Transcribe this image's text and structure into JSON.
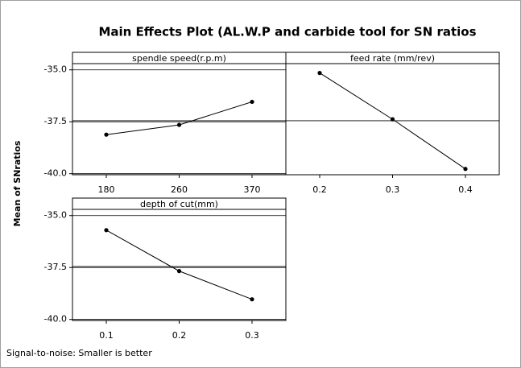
{
  "title": "Main Effects Plot (AL.W.P and carbide tool for SN ratios",
  "y_label": "Mean of SNratios",
  "footnote": "Signal-to-noise: Smaller is better",
  "chart_data": [
    {
      "type": "line",
      "title": "spendle speed(r.p.m)",
      "categories": [
        "180",
        "260",
        "370"
      ],
      "values": [
        -38.12,
        -37.65,
        -36.54
      ],
      "color": "#000000",
      "reference_line": -37.45,
      "ylim": [
        -40.05,
        -34.7
      ],
      "yticks": [
        {
          "value": -35,
          "label": "-35.0"
        },
        -37.5,
        {
          "value": -40,
          "label": "-40.0"
        }
      ]
    },
    {
      "type": "line",
      "title": "feed rate (mm/rev)",
      "categories": [
        "0.2",
        "0.3",
        "0.4"
      ],
      "values": [
        -35.15,
        -37.38,
        -39.77
      ],
      "color": "#000000",
      "reference_line": -37.45,
      "ylim": [
        -40.05,
        -34.7
      ]
    },
    {
      "type": "line",
      "title": "depth of cut(mm)",
      "categories": [
        "0.1",
        "0.2",
        "0.3"
      ],
      "values": [
        -35.7,
        -37.67,
        -39.03
      ],
      "color": "#000000",
      "reference_line": -37.45,
      "ylim": [
        -40.05,
        -34.7
      ],
      "yticks": [
        {
          "value": -35,
          "label": "-35.0"
        },
        -37.5,
        {
          "value": -40,
          "label": "-40.0"
        }
      ]
    }
  ]
}
